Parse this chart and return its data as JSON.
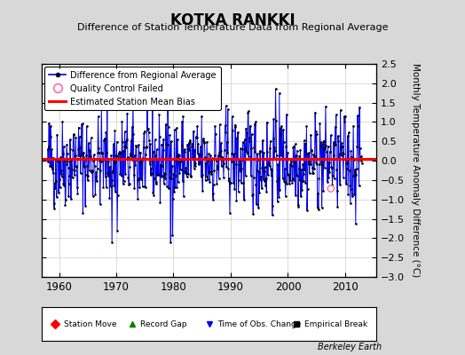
{
  "title": "KOTKA RANKKI",
  "subtitle": "Difference of Station Temperature Data from Regional Average",
  "ylabel": "Monthly Temperature Anomaly Difference (°C)",
  "xlim": [
    1957.0,
    2015.5
  ],
  "ylim": [
    -3.0,
    2.5
  ],
  "yticks": [
    -3,
    -2.5,
    -2,
    -1.5,
    -1,
    -0.5,
    0,
    0.5,
    1,
    1.5,
    2,
    2.5
  ],
  "xticks": [
    1960,
    1970,
    1980,
    1990,
    2000,
    2010
  ],
  "mean_bias": 0.05,
  "bias_color": "#ff0000",
  "line_color": "#0000ee",
  "dot_color": "#000000",
  "qc_color": "#ff69b4",
  "background_color": "#d8d8d8",
  "plot_bg_color": "#ffffff",
  "seed": 42,
  "n_points": 660,
  "start_year": 1958.0,
  "qc_fail_x": 2007.5,
  "qc_fail_y": -0.72,
  "watermark": "Berkeley Earth"
}
